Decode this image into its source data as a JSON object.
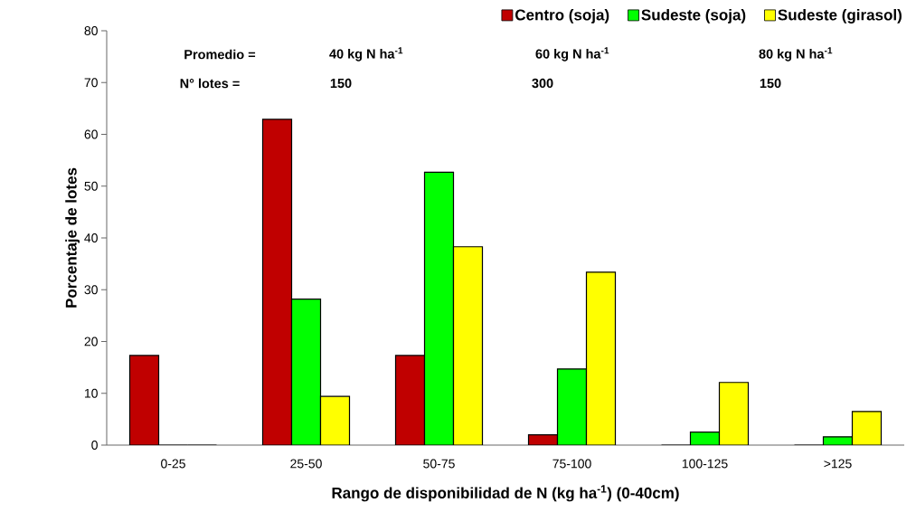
{
  "chart_data": {
    "type": "bar",
    "xlabel": "Rango de disponibilidad de N (kg ha$^{-1}$) (0-40cm)",
    "ylabel": "Porcentaje de lotes",
    "categories": [
      "0-25",
      "25-50",
      "50-75",
      "75-100",
      "100-125",
      ">125"
    ],
    "series": [
      {
        "name": "Centro (soja)",
        "color": "#c00000",
        "values": [
          17.3,
          62.9,
          17.3,
          2.0,
          0,
          0
        ]
      },
      {
        "name": "Sudeste (soja)",
        "color": "#00ff00",
        "values": [
          0,
          28.2,
          52.7,
          14.7,
          2.5,
          1.6
        ]
      },
      {
        "name": "Sudeste (girasol)",
        "color": "#ffff00",
        "values": [
          0,
          9.4,
          38.3,
          33.4,
          12.1,
          6.5
        ]
      }
    ],
    "ylim": [
      0,
      80
    ],
    "yticks": [
      0,
      10,
      20,
      30,
      40,
      50,
      60,
      70,
      80
    ],
    "legend": "top",
    "grid": false,
    "annotations": [
      "Promedio =",
      "40 kg N ha$^{-1}$",
      "60  kg N ha$^{-1}$",
      "80 kg N ha$^{-1}$",
      "N° lotes =",
      "150",
      "300",
      "150"
    ]
  }
}
